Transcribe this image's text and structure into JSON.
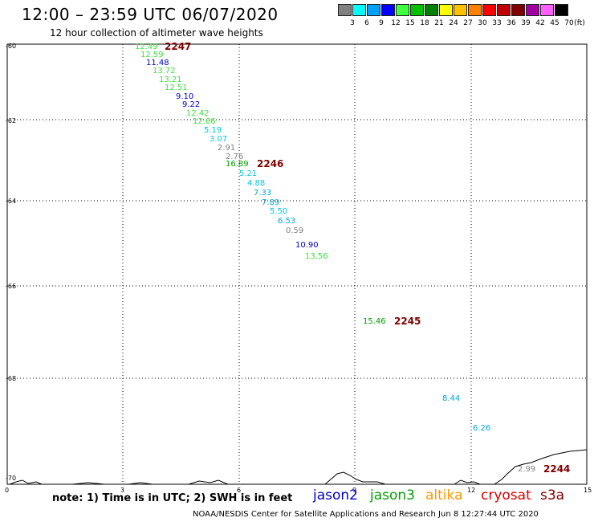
{
  "title": "12:00 – 23:59 UTC 06/07/2020",
  "subtitle": "12 hour collection of altimeter wave heights",
  "legend": {
    "unit_label": "(ft)",
    "bins": [
      {
        "label": "3",
        "color": "#808080"
      },
      {
        "label": "6",
        "color": "#00ffff"
      },
      {
        "label": "9",
        "color": "#00a0ff"
      },
      {
        "label": "12",
        "color": "#0000ff"
      },
      {
        "label": "15",
        "color": "#40ff40"
      },
      {
        "label": "18",
        "color": "#00c000"
      },
      {
        "label": "21",
        "color": "#008000"
      },
      {
        "label": "24",
        "color": "#ffff00"
      },
      {
        "label": "27",
        "color": "#ffc000"
      },
      {
        "label": "30",
        "color": "#ff8000"
      },
      {
        "label": "33",
        "color": "#ff0000"
      },
      {
        "label": "36",
        "color": "#c00000"
      },
      {
        "label": "39",
        "color": "#800000"
      },
      {
        "label": "42",
        "color": "#a000a0"
      },
      {
        "label": "45",
        "color": "#ff60ff"
      },
      {
        "label": "70",
        "color": "#000000"
      }
    ]
  },
  "axes": {
    "lat_labels": [
      "-60",
      "-62",
      "-64",
      "-66",
      "-68",
      "-70"
    ],
    "lon_labels": [
      "0",
      "3",
      "6",
      "9",
      "12",
      "15"
    ]
  },
  "passes": [
    {
      "id": "2247",
      "color": "#800000"
    },
    {
      "id": "2246",
      "color": "#800000"
    },
    {
      "id": "2245",
      "color": "#800000"
    },
    {
      "id": "2244",
      "color": "#800000"
    }
  ],
  "wave_heights": [
    {
      "value": "12.49",
      "color": "#40e040"
    },
    {
      "value": "12.59",
      "color": "#40e040"
    },
    {
      "value": "11.48",
      "color": "#0000c0"
    },
    {
      "value": "13.72",
      "color": "#40e040"
    },
    {
      "value": "13.21",
      "color": "#40e040"
    },
    {
      "value": "12.51",
      "color": "#40e040"
    },
    {
      "value": "9.10",
      "color": "#0000c0"
    },
    {
      "value": "9.22",
      "color": "#0000c0"
    },
    {
      "value": "12.42",
      "color": "#40e040"
    },
    {
      "value": "12.66",
      "color": "#40e040"
    },
    {
      "value": "5.19",
      "color": "#00c8e0"
    },
    {
      "value": "3.07",
      "color": "#00c8e0"
    },
    {
      "value": "2.91",
      "color": "#808080"
    },
    {
      "value": "2.76",
      "color": "#808080"
    },
    {
      "value": "16.89",
      "color": "#00a000"
    },
    {
      "value": "5.21",
      "color": "#00c8e0"
    },
    {
      "value": "4.88",
      "color": "#00c8e0"
    },
    {
      "value": "7.33",
      "color": "#00a8d8"
    },
    {
      "value": "7.89",
      "color": "#00a8d8"
    },
    {
      "value": "5.50",
      "color": "#00c8e0"
    },
    {
      "value": "6.53",
      "color": "#00a8d8"
    },
    {
      "value": "0.59",
      "color": "#808080"
    },
    {
      "value": "10.90",
      "color": "#0000c0"
    },
    {
      "value": "13.56",
      "color": "#40e040"
    },
    {
      "value": "15.46",
      "color": "#00a000"
    },
    {
      "value": "8.44",
      "color": "#00a8d8"
    },
    {
      "value": "6.26",
      "color": "#00a8d8"
    },
    {
      "value": "2.99",
      "color": "#808080"
    }
  ],
  "note": "note: 1) Time is in UTC; 2) SWH is in feet",
  "satellites": [
    {
      "name": "jason2",
      "color": "#0000cc"
    },
    {
      "name": "jason3",
      "color": "#00a000"
    },
    {
      "name": "altika",
      "color": "#ff9900"
    },
    {
      "name": "cryosat",
      "color": "#dd0000"
    },
    {
      "name": "s3a",
      "color": "#800000"
    }
  ],
  "credit": "NOAA/NESDIS Center for Satellite Applications and Research    Jun  8 12:27:44 UTC 2020"
}
